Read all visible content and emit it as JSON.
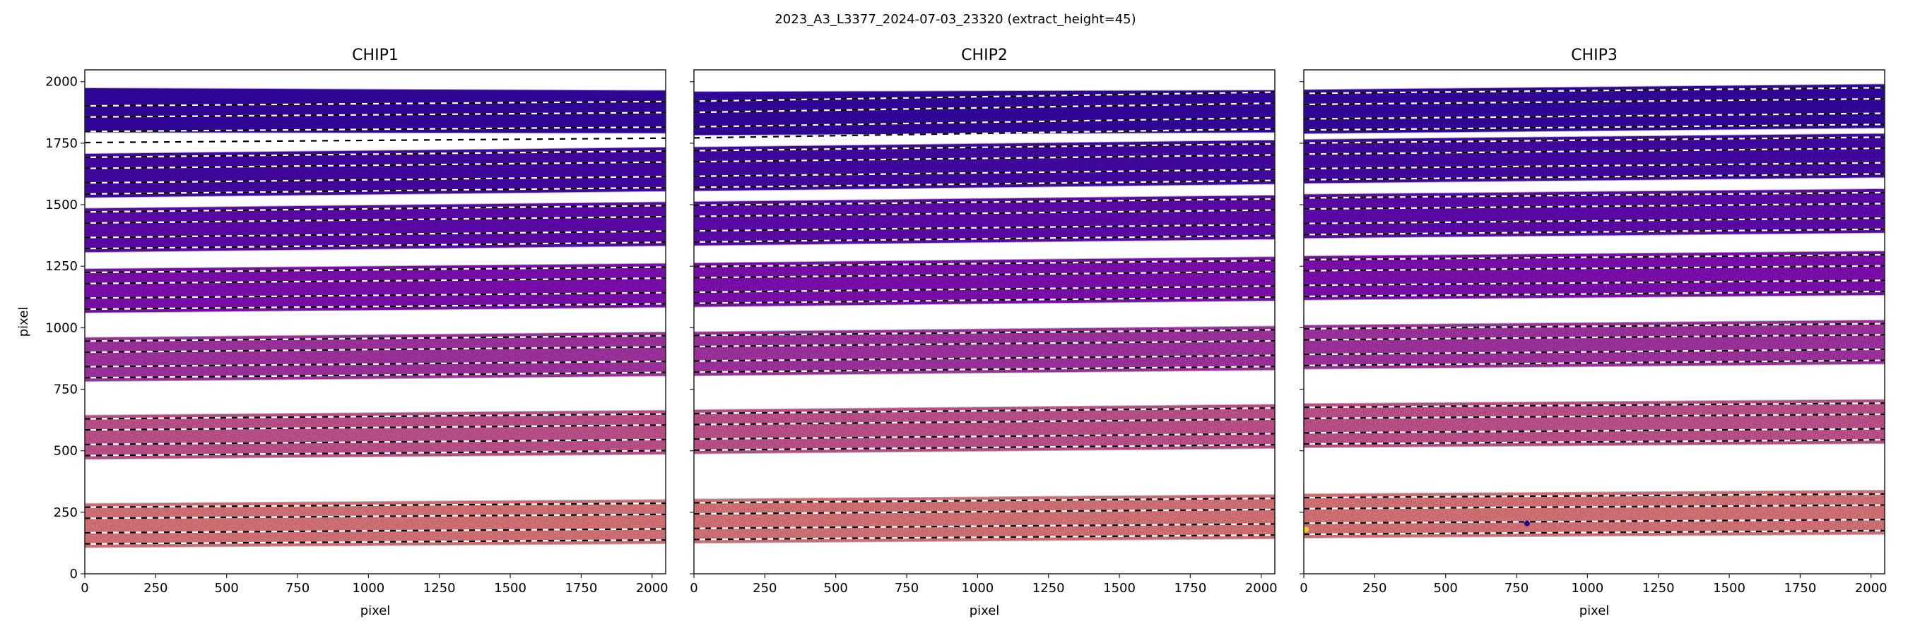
{
  "chart_data": {
    "type": "heatmap",
    "title": "2023_A3_L3377_2024-07-03_23320  (extract_height=45)",
    "xlabel": "pixel",
    "ylabel": "pixel",
    "xlim": [
      0,
      2048
    ],
    "ylim": [
      0,
      2048
    ],
    "xticks": [
      0,
      250,
      500,
      750,
      1000,
      1250,
      1500,
      1750,
      2000
    ],
    "yticks": [
      0,
      250,
      500,
      750,
      1000,
      1250,
      1500,
      1750,
      2000
    ],
    "xtick_labels": [
      "0",
      "250",
      "500",
      "750",
      "1000",
      "1250",
      "1500",
      "1750",
      "2000"
    ],
    "ytick_labels": [
      "0",
      "250",
      "500",
      "750",
      "1000",
      "1250",
      "1500",
      "1750",
      "2000"
    ],
    "extract_height": 45,
    "trace_offsets": [
      -74.5,
      -29.5,
      29.5,
      74.5
    ],
    "order_half_width": 90,
    "colormap": "plasma",
    "order_colors": [
      "#2d0495",
      "#3c049b",
      "#5302a3",
      "#6f00a8",
      "#8e1f99",
      "#ab3a84",
      "#c25a6c"
    ],
    "noise_strength": [
      0.05,
      0.08,
      0.14,
      0.25,
      0.4,
      0.55,
      0.7
    ],
    "panels": [
      {
        "title": "CHIP1",
        "orders": [
          {
            "center": [
              1827,
              1845
            ],
            "fill": [
              [
                1793,
                1975
              ],
              [
                1790,
                1965
              ]
            ]
          },
          {
            "center": [
              1618,
              1644
            ]
          },
          {
            "center": [
              1396,
              1422
            ]
          },
          {
            "center": [
              1150,
              1172
            ]
          },
          {
            "center": [
              871,
              893
            ]
          },
          {
            "center": [
              555,
              575
            ]
          },
          {
            "center": [
              196,
              212
            ]
          }
        ],
        "features": []
      },
      {
        "title": "CHIP2",
        "orders": [
          {
            "center": [
              1846,
              1883
            ],
            "fill": [
              [
                1782,
                1960
              ],
              [
                1793,
                1966
              ]
            ]
          },
          {
            "center": [
              1645,
              1673
            ]
          },
          {
            "center": [
              1423,
              1449
            ]
          },
          {
            "center": [
              1174,
              1199
            ]
          },
          {
            "center": [
              894,
              917
            ]
          },
          {
            "center": [
              577,
              599
            ]
          },
          {
            "center": [
              214,
              232
            ]
          }
        ],
        "features": []
      },
      {
        "title": "CHIP3",
        "orders": [
          {
            "center": [
              1878,
              1901
            ]
          },
          {
            "center": [
              1676,
              1700
            ]
          },
          {
            "center": [
              1453,
              1475
            ]
          },
          {
            "center": [
              1202,
              1222
            ]
          },
          {
            "center": [
              921,
              942
            ]
          },
          {
            "center": [
              602,
              619
            ]
          },
          {
            "center": [
              235,
              250
            ]
          }
        ],
        "features": [
          {
            "x": 787,
            "y": 205,
            "color": "#1c0a82"
          },
          {
            "x": 8,
            "y": 180,
            "color": "#f0d020"
          }
        ]
      }
    ]
  }
}
